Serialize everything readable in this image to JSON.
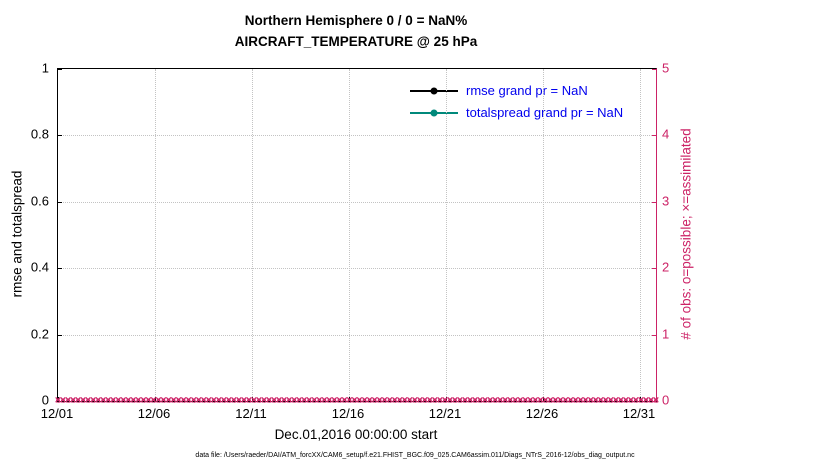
{
  "caption": "data file: /Users/raeder/DAI/ATM_forcXX/CAM6_setup/f.e21.FHIST_BGC.f09_025.CAM6assim.011/Diags_NTrS_2016-12/obs_diag_output.nc",
  "colors": {
    "accent_pink": "#CC2266",
    "legend_text_blue": "#0000EE",
    "rmse_black": "#000000",
    "totalspread_teal": "#00897B",
    "grid_gray": "#C3C3C3",
    "axis_black": "#000000"
  },
  "chart_data": {
    "type": "line",
    "title": "Northern Hemisphere 0 / 0 = NaN%",
    "subtitle": "AIRCRAFT_TEMPERATURE @ 25 hPa",
    "xlabel": "Dec.01,2016 00:00:00 start",
    "ylabel_left": "rmse and totalspread",
    "ylabel_right": "# of obs: o=possible; ×=assimilated",
    "grid": true,
    "legend_position": "upper center, inside axes, no box",
    "x_tick_labels": [
      "12/01",
      "12/06",
      "12/11",
      "12/16",
      "12/21",
      "12/26",
      "12/31"
    ],
    "ylim_left": [
      0,
      1
    ],
    "ylim_right": [
      0,
      5
    ],
    "y_ticks_left": [
      {
        "v": 0,
        "label": "0"
      },
      {
        "v": 0.2,
        "label": "0.2"
      },
      {
        "v": 0.4,
        "label": "0.4"
      },
      {
        "v": 0.6,
        "label": "0.6"
      },
      {
        "v": 0.8,
        "label": "0.8"
      },
      {
        "v": 1,
        "label": "1"
      }
    ],
    "y_ticks_right": [
      {
        "v": 0,
        "label": "0"
      },
      {
        "v": 1,
        "label": "1"
      },
      {
        "v": 2,
        "label": "2"
      },
      {
        "v": 3,
        "label": "3"
      },
      {
        "v": 4,
        "label": "4"
      },
      {
        "v": 5,
        "label": "5"
      }
    ],
    "series": [
      {
        "name": "rmse",
        "legend_label": "rmse grand pr = NaN",
        "color": "#000000",
        "marker": "filled-circle",
        "values": "NaN (no curve plotted)"
      },
      {
        "name": "totalspread",
        "legend_label": "totalspread grand pr = NaN",
        "color": "#00897B",
        "marker": "filled-circle",
        "values": "NaN (no curve plotted)"
      }
    ],
    "obs_counts": {
      "axis": "right",
      "color": "#CC2266",
      "possible_marker": "o",
      "assimilated_marker": "×",
      "value_at_every_time": 0,
      "marker_row_points": 120
    }
  }
}
